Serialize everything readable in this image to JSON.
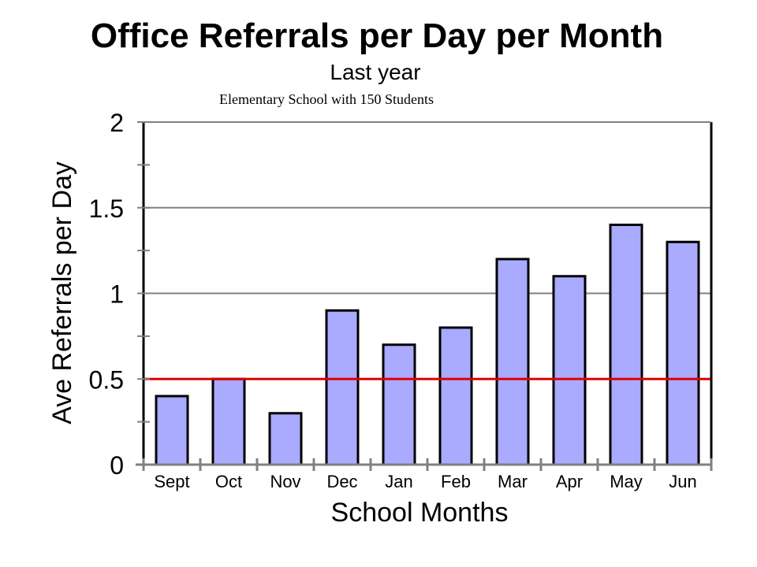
{
  "chart_data": {
    "type": "bar",
    "title": "Office Referrals per Day per Month",
    "subtitle": "Last year",
    "caption": "Elementary School with 150 Students",
    "xlabel": "School Months",
    "ylabel": "Ave Referrals per Day",
    "categories": [
      "Sept",
      "Oct",
      "Nov",
      "Dec",
      "Jan",
      "Feb",
      "Mar",
      "Apr",
      "May",
      "Jun"
    ],
    "values": [
      0.4,
      0.5,
      0.3,
      0.9,
      0.7,
      0.8,
      1.2,
      1.1,
      1.4,
      1.3
    ],
    "yticks": [
      "0",
      "0.5",
      "1",
      "1.5",
      "2"
    ],
    "ylim": [
      0,
      2
    ],
    "reference_line": 0.5,
    "grid": true,
    "colors": {
      "bar_fill": "#aaaaff",
      "bar_stroke": "#000000",
      "reference_line": "#e00000",
      "grid": "#808080"
    }
  }
}
